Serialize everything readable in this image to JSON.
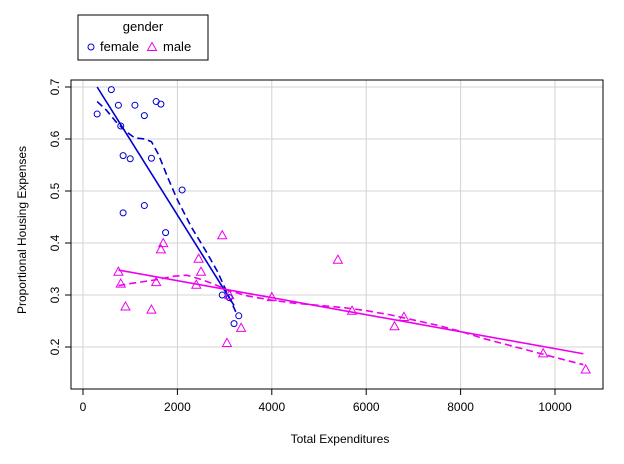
{
  "chart_data": {
    "type": "scatter",
    "title": "",
    "xlabel": "Total Expenditures",
    "ylabel": "Proportional Housing Expenses",
    "xlim": [
      0,
      11000
    ],
    "ylim": [
      0.15,
      0.72
    ],
    "xticks": [
      0,
      2000,
      4000,
      6000,
      8000,
      10000
    ],
    "xtick_labels": [
      "0",
      "2000",
      "4000",
      "6000",
      "8000",
      "10000"
    ],
    "yticks": [
      0.2,
      0.3,
      0.4,
      0.5,
      0.6,
      0.7
    ],
    "ytick_labels": [
      "0.2",
      "0.3",
      "0.4",
      "0.5",
      "0.6",
      "0.7"
    ],
    "grid": true,
    "legend": {
      "title": "gender",
      "placement": "top-left outside plot",
      "entries": [
        {
          "label": "female",
          "marker": "circle",
          "color": "#0000cd"
        },
        {
          "label": "male",
          "marker": "triangle",
          "color": "#ee00ee"
        }
      ]
    },
    "series": [
      {
        "name": "female",
        "color": "#0000cd",
        "marker": "circle",
        "points": [
          [
            300,
            0.648
          ],
          [
            600,
            0.695
          ],
          [
            750,
            0.665
          ],
          [
            800,
            0.625
          ],
          [
            850,
            0.568
          ],
          [
            850,
            0.458
          ],
          [
            1000,
            0.562
          ],
          [
            1100,
            0.665
          ],
          [
            1300,
            0.645
          ],
          [
            1300,
            0.472
          ],
          [
            1450,
            0.563
          ],
          [
            1550,
            0.672
          ],
          [
            1650,
            0.667
          ],
          [
            1750,
            0.42
          ],
          [
            2100,
            0.502
          ],
          [
            2950,
            0.3
          ],
          [
            3100,
            0.295
          ],
          [
            3200,
            0.245
          ],
          [
            3300,
            0.26
          ]
        ],
        "fit_line": [
          [
            300,
            0.7
          ],
          [
            3200,
            0.28
          ]
        ],
        "smooth_line": [
          [
            300,
            0.672
          ],
          [
            500,
            0.655
          ],
          [
            700,
            0.633
          ],
          [
            900,
            0.615
          ],
          [
            1100,
            0.602
          ],
          [
            1300,
            0.6
          ],
          [
            1450,
            0.595
          ],
          [
            1600,
            0.57
          ],
          [
            1800,
            0.525
          ],
          [
            2000,
            0.483
          ],
          [
            2300,
            0.43
          ],
          [
            2600,
            0.385
          ],
          [
            2850,
            0.345
          ],
          [
            3050,
            0.305
          ],
          [
            3250,
            0.265
          ]
        ]
      },
      {
        "name": "male",
        "color": "#ee00ee",
        "marker": "triangle",
        "points": [
          [
            750,
            0.345
          ],
          [
            800,
            0.322
          ],
          [
            900,
            0.278
          ],
          [
            1450,
            0.272
          ],
          [
            1550,
            0.325
          ],
          [
            1650,
            0.388
          ],
          [
            1700,
            0.4
          ],
          [
            2400,
            0.32
          ],
          [
            2450,
            0.37
          ],
          [
            2500,
            0.345
          ],
          [
            2950,
            0.415
          ],
          [
            3050,
            0.208
          ],
          [
            3100,
            0.3
          ],
          [
            3350,
            0.237
          ],
          [
            4000,
            0.296
          ],
          [
            5400,
            0.368
          ],
          [
            5700,
            0.27
          ],
          [
            6600,
            0.24
          ],
          [
            6800,
            0.258
          ],
          [
            9750,
            0.188
          ],
          [
            10650,
            0.157
          ]
        ],
        "fit_line": [
          [
            750,
            0.348
          ],
          [
            10600,
            0.187
          ]
        ],
        "smooth_line": [
          [
            750,
            0.318
          ],
          [
            1000,
            0.322
          ],
          [
            1300,
            0.326
          ],
          [
            1600,
            0.33
          ],
          [
            1900,
            0.336
          ],
          [
            2200,
            0.338
          ],
          [
            2500,
            0.33
          ],
          [
            2800,
            0.32
          ],
          [
            3100,
            0.308
          ],
          [
            3500,
            0.298
          ],
          [
            4000,
            0.29
          ],
          [
            4500,
            0.284
          ],
          [
            5000,
            0.28
          ],
          [
            5500,
            0.276
          ],
          [
            6000,
            0.27
          ],
          [
            6500,
            0.262
          ],
          [
            7000,
            0.252
          ],
          [
            7500,
            0.242
          ],
          [
            8000,
            0.23
          ],
          [
            8500,
            0.216
          ],
          [
            9000,
            0.204
          ],
          [
            9500,
            0.192
          ],
          [
            10000,
            0.18
          ],
          [
            10600,
            0.166
          ]
        ]
      }
    ]
  }
}
